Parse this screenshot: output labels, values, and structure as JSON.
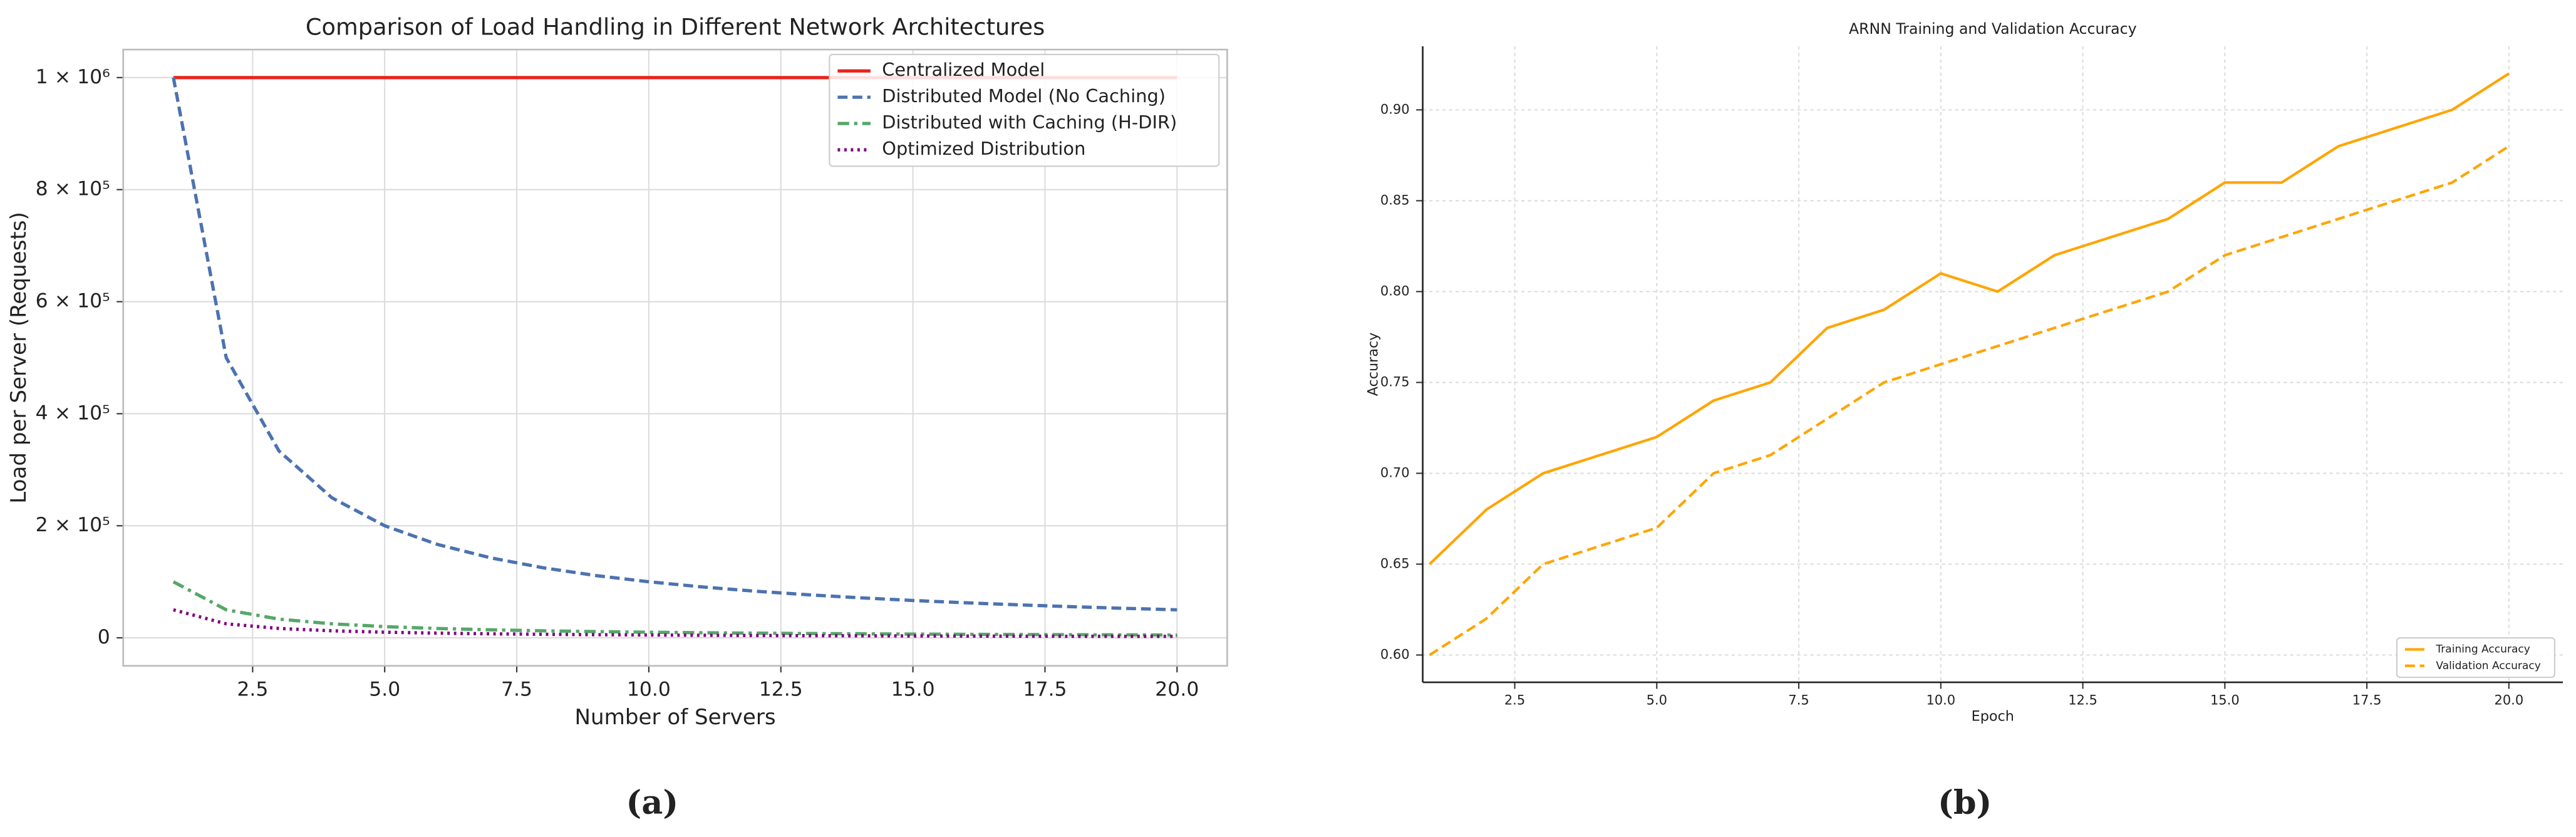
{
  "chart_data": [
    {
      "type": "line",
      "title": "Comparison of Load Handling in Different Network Architectures",
      "x_label": "Number of Servers",
      "y_label": "Load per Server (Requests)",
      "caption": "(a)",
      "x": [
        1,
        2,
        3,
        4,
        5,
        6,
        7,
        8,
        9,
        10,
        11,
        12,
        13,
        14,
        15,
        16,
        17,
        18,
        19,
        20
      ],
      "xlim": [
        0.05,
        20.95
      ],
      "ylim": [
        -50000,
        1050000
      ],
      "xticks": [
        2.5,
        {
          "value": 5,
          "label": "5.0"
        },
        7.5,
        {
          "value": 10,
          "label": "10.0"
        },
        12.5,
        {
          "value": 15,
          "label": "15.0"
        },
        17.5,
        {
          "value": 20,
          "label": "20.0"
        }
      ],
      "yticks": [
        0,
        {
          "value": 200000,
          "label": "2 × 10⁵"
        },
        {
          "value": 400000,
          "label": "4 × 10⁵"
        },
        {
          "value": 600000,
          "label": "6 × 10⁵"
        },
        {
          "value": 800000,
          "label": "8 × 10⁵"
        },
        {
          "value": 1000000,
          "label": "1 × 10⁶"
        }
      ],
      "grid": true,
      "legend": "upper right",
      "series": [
        {
          "name": "Centralized Model",
          "color": "#e8241c",
          "dash": "solid",
          "values": [
            1000000,
            1000000,
            1000000,
            1000000,
            1000000,
            1000000,
            1000000,
            1000000,
            1000000,
            1000000,
            1000000,
            1000000,
            1000000,
            1000000,
            1000000,
            1000000,
            1000000,
            1000000,
            1000000,
            1000000
          ]
        },
        {
          "name": "Distributed Model (No Caching)",
          "color": "#4c72b0",
          "dash": "dashed",
          "values": [
            1000000,
            500000,
            333333,
            250000,
            200000,
            166667,
            142857,
            125000,
            111111,
            100000,
            90909,
            83333,
            76923,
            71429,
            66667,
            62500,
            58824,
            55556,
            52632,
            50000
          ]
        },
        {
          "name": "Distributed with Caching (H-DIR)",
          "color": "#55a868",
          "dash": "dashdot",
          "values": [
            100000,
            50000,
            33333,
            25000,
            20000,
            16667,
            14286,
            12500,
            11111,
            10000,
            9091,
            8333,
            7692,
            7143,
            6667,
            6250,
            5882,
            5556,
            5263,
            5000
          ]
        },
        {
          "name": "Optimized Distribution",
          "color": "#800080",
          "dash": "dotted",
          "values": [
            50000,
            25000,
            16667,
            12500,
            10000,
            8333,
            7143,
            6250,
            5556,
            5000,
            4545,
            4167,
            3846,
            3571,
            3333,
            3125,
            2941,
            2778,
            2632,
            2500
          ]
        }
      ]
    },
    {
      "type": "line",
      "title": "ARNN Training and Validation Accuracy",
      "x_label": "Epoch",
      "y_label": "Accuracy",
      "caption": "(b)",
      "x": [
        1,
        2,
        3,
        4,
        5,
        6,
        7,
        8,
        9,
        10,
        11,
        12,
        13,
        14,
        15,
        16,
        17,
        18,
        19,
        20
      ],
      "xlim": [
        0.88,
        20.95
      ],
      "ylim": [
        0.585,
        0.935
      ],
      "xticks": [
        2.5,
        {
          "value": 5,
          "label": "5.0"
        },
        7.5,
        {
          "value": 10,
          "label": "10.0"
        },
        12.5,
        {
          "value": 15,
          "label": "15.0"
        },
        17.5,
        {
          "value": 20,
          "label": "20.0"
        }
      ],
      "yticks": [
        {
          "value": 0.6,
          "label": "0.60"
        },
        0.65,
        {
          "value": 0.7,
          "label": "0.70"
        },
        0.75,
        {
          "value": 0.8,
          "label": "0.80"
        },
        0.85,
        {
          "value": 0.9,
          "label": "0.90"
        }
      ],
      "grid": true,
      "legend": "lower right",
      "series": [
        {
          "name": "Training Accuracy",
          "color": "#ffa500",
          "dash": "solid",
          "values": [
            0.65,
            0.68,
            0.7,
            0.71,
            0.72,
            0.74,
            0.75,
            0.78,
            0.79,
            0.81,
            0.8,
            0.82,
            0.83,
            0.84,
            0.86,
            0.86,
            0.88,
            0.89,
            0.9,
            0.92
          ]
        },
        {
          "name": "Validation Accuracy",
          "color": "#ffa500",
          "dash": "dashed",
          "values": [
            0.6,
            0.62,
            0.65,
            0.66,
            0.67,
            0.7,
            0.71,
            0.73,
            0.75,
            0.76,
            0.77,
            0.78,
            0.79,
            0.8,
            0.82,
            0.83,
            0.84,
            0.85,
            0.86,
            0.88
          ]
        }
      ]
    }
  ]
}
